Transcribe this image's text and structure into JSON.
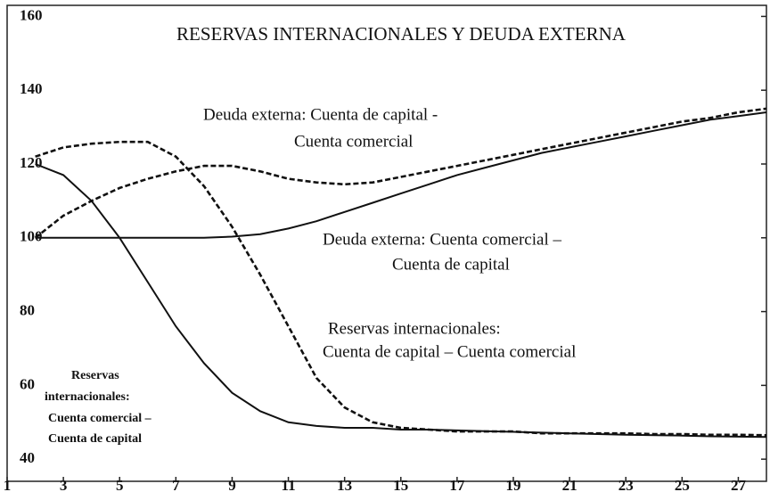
{
  "chart_data": {
    "type": "line",
    "title": "RESERVAS INTERNACIONALES Y DEUDA EXTERNA",
    "x": [
      2,
      3,
      4,
      5,
      6,
      7,
      8,
      9,
      10,
      11,
      12,
      13,
      14,
      15,
      16,
      17,
      18,
      19,
      20,
      21,
      22,
      23,
      24,
      25,
      26,
      27,
      28
    ],
    "xlim": [
      1,
      28
    ],
    "xticks": [
      1,
      3,
      5,
      7,
      9,
      11,
      13,
      15,
      17,
      19,
      21,
      23,
      25,
      27
    ],
    "ylim": [
      34,
      163
    ],
    "yticks": [
      40,
      60,
      80,
      100,
      120,
      140,
      160
    ],
    "grid": false,
    "series": [
      {
        "label": [
          "Deuda externa: Cuenta de capital -",
          "Cuenta comercial"
        ],
        "color": "#111111",
        "style": "dashed",
        "values": [
          100,
          106,
          110,
          113.5,
          116,
          118,
          119.5,
          119.5,
          118,
          116,
          115,
          114.5,
          115,
          116.5,
          118,
          119.5,
          121,
          122.5,
          124,
          125.5,
          127,
          128.5,
          130,
          131.5,
          132.5,
          134,
          135
        ]
      },
      {
        "label": [
          "Deuda externa: Cuenta comercial –",
          "Cuenta de capital"
        ],
        "color": "#111111",
        "style": "solid",
        "values": [
          100,
          100,
          100,
          100,
          100,
          100,
          100,
          100.3,
          101,
          102.5,
          104.5,
          107,
          109.5,
          112,
          114.5,
          117,
          119,
          121,
          123,
          124.5,
          126,
          127.5,
          129,
          130.5,
          132,
          133,
          134
        ]
      },
      {
        "label": [
          "Reservas internacionales:",
          "Cuenta de capital – Cuenta comercial"
        ],
        "color": "#111111",
        "style": "dashed",
        "values": [
          122,
          124.5,
          125.5,
          126,
          126,
          122,
          114,
          103,
          90,
          76,
          62,
          54,
          50,
          48.5,
          48,
          47.5,
          47.5,
          47.5,
          47,
          47,
          47,
          47,
          46.8,
          46.8,
          46.6,
          46.6,
          46.5
        ]
      },
      {
        "label": [
          "Reservas",
          "internacionales:",
          "Cuenta comercial –",
          "Cuenta de capital"
        ],
        "color": "#111111",
        "style": "solid",
        "values": [
          120,
          117,
          110,
          100,
          88,
          76,
          66,
          58,
          53,
          50,
          49,
          48.5,
          48.5,
          48,
          48,
          47.8,
          47.6,
          47.4,
          47.2,
          47,
          46.8,
          46.6,
          46.5,
          46.4,
          46.2,
          46.1,
          46
        ]
      }
    ]
  }
}
